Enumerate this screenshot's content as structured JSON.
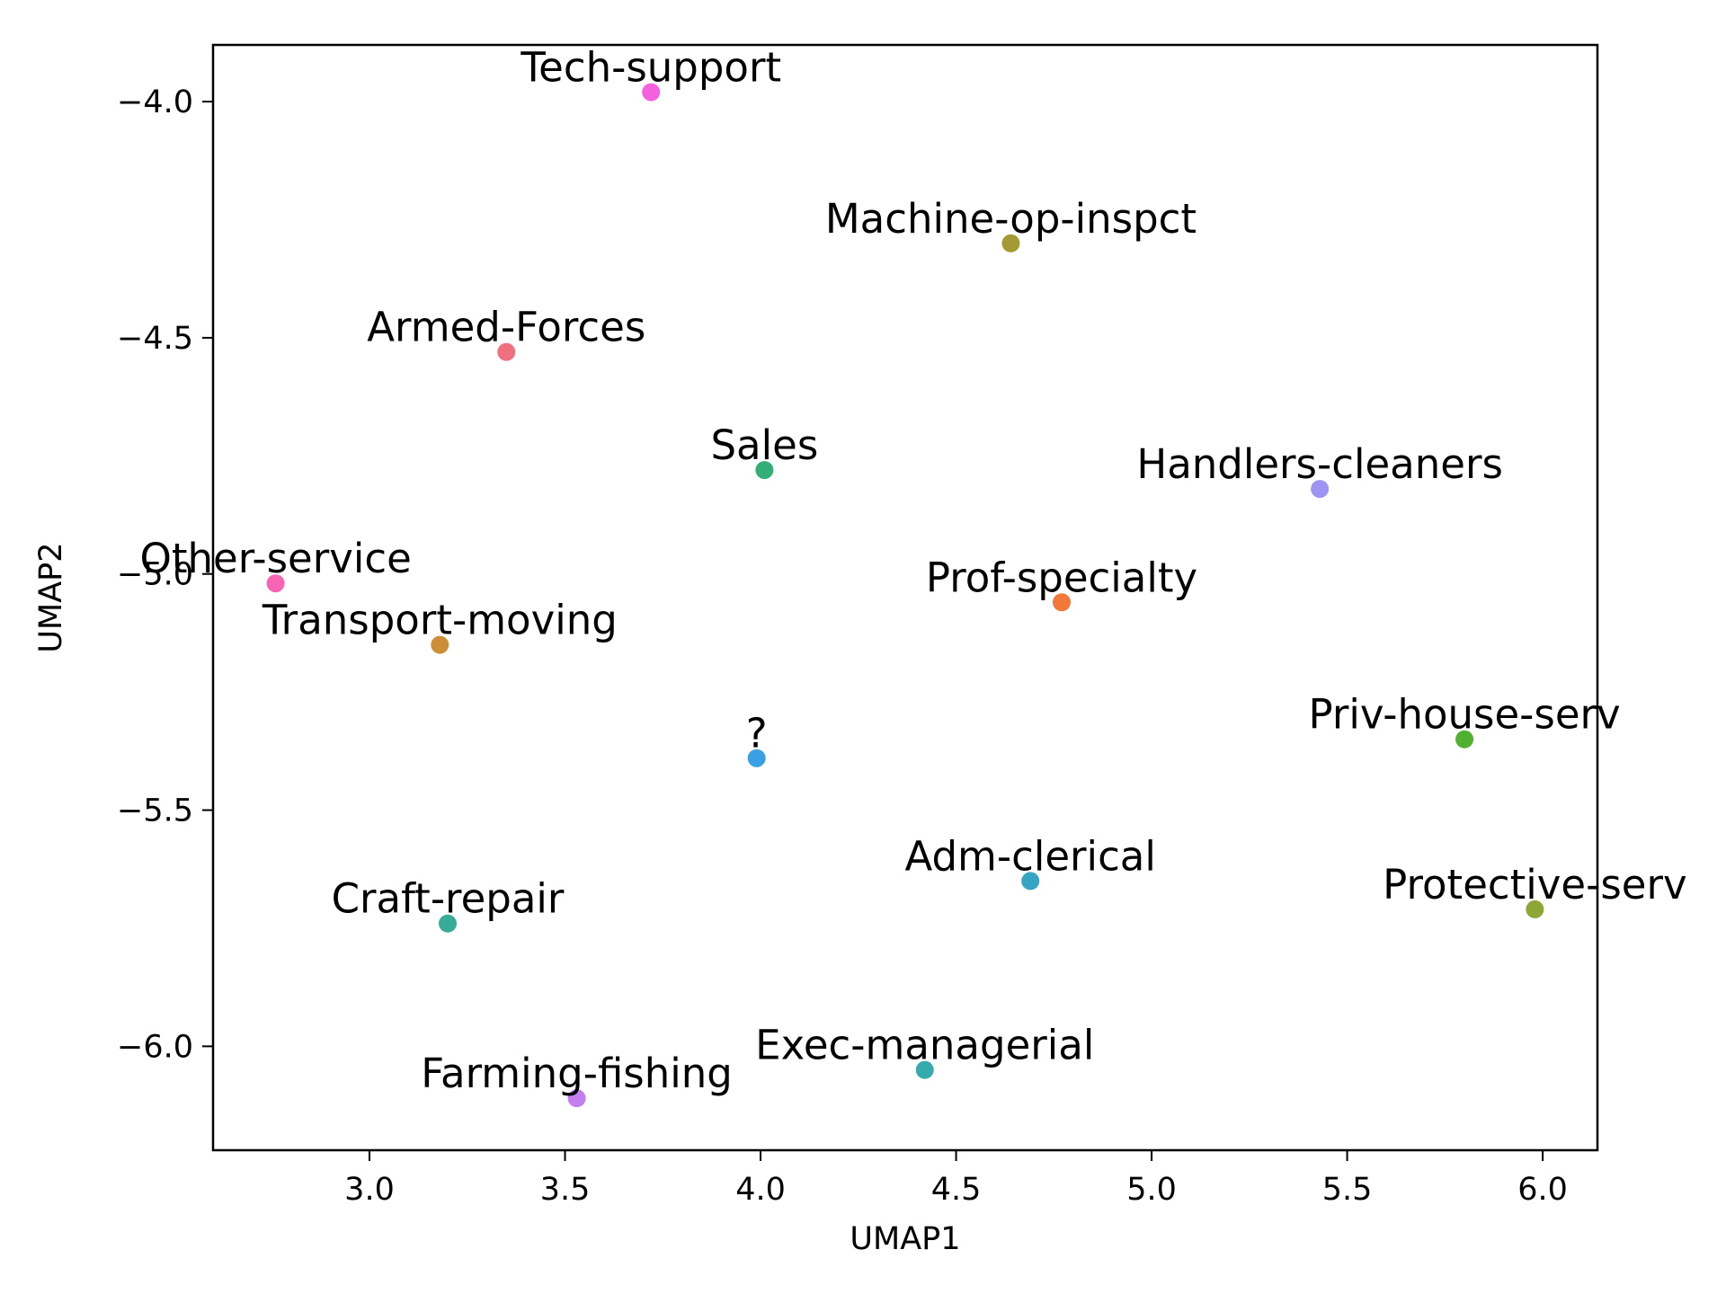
{
  "chart_data": {
    "type": "scatter",
    "title": "",
    "xlabel": "UMAP1",
    "ylabel": "UMAP2",
    "xlim": [
      2.6,
      6.14
    ],
    "ylim": [
      -6.22,
      -3.88
    ],
    "xticks": [
      3.0,
      3.5,
      4.0,
      4.5,
      5.0,
      5.5,
      6.0
    ],
    "xtick_labels": [
      "3.0",
      "3.5",
      "4.0",
      "4.5",
      "5.0",
      "5.5",
      "6.0"
    ],
    "yticks": [
      -4.0,
      -4.5,
      -5.0,
      -5.5,
      -6.0
    ],
    "ytick_labels": [
      "−4.0",
      "−4.5",
      "−5.0",
      "−5.5",
      "−6.0"
    ],
    "grid": false,
    "legend": "none",
    "points": [
      {
        "label": "Tech-support",
        "x": 3.72,
        "y": -3.98,
        "color": "#f461dd"
      },
      {
        "label": "Machine-op-inspct",
        "x": 4.64,
        "y": -4.3,
        "color": "#a39a33"
      },
      {
        "label": "Armed-Forces",
        "x": 3.35,
        "y": -4.53,
        "color": "#f0707f"
      },
      {
        "label": "Sales",
        "x": 4.01,
        "y": -4.78,
        "color": "#34ae77"
      },
      {
        "label": "Handlers-cleaners",
        "x": 5.43,
        "y": -4.82,
        "color": "#9d94f4"
      },
      {
        "label": "Other-service",
        "x": 2.76,
        "y": -5.02,
        "color": "#f664b3"
      },
      {
        "label": "Prof-specialty",
        "x": 4.77,
        "y": -5.06,
        "color": "#f07838"
      },
      {
        "label": "Transport-moving",
        "x": 3.18,
        "y": -5.15,
        "color": "#cc8f37"
      },
      {
        "label": "?",
        "x": 3.99,
        "y": -5.39,
        "color": "#3aa0e6"
      },
      {
        "label": "Priv-house-serv",
        "x": 5.8,
        "y": -5.35,
        "color": "#50b130"
      },
      {
        "label": "Adm-clerical",
        "x": 4.69,
        "y": -5.65,
        "color": "#36a5c4"
      },
      {
        "label": "Protective-serv",
        "x": 5.98,
        "y": -5.71,
        "color": "#8ea634"
      },
      {
        "label": "Craft-repair",
        "x": 3.2,
        "y": -5.74,
        "color": "#38ab99"
      },
      {
        "label": "Exec-managerial",
        "x": 4.42,
        "y": -6.05,
        "color": "#36aaad"
      },
      {
        "label": "Farming-fishing",
        "x": 3.53,
        "y": -6.11,
        "color": "#c57ef2"
      }
    ]
  }
}
